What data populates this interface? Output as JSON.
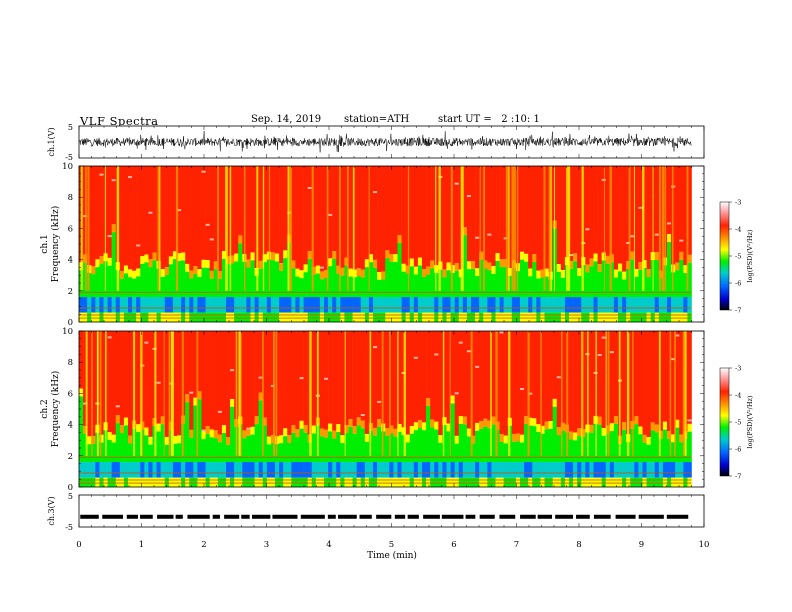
{
  "header": {
    "title": "VLF Spectra",
    "date": "Sep. 14, 2019",
    "station": "station=ATH",
    "start_ut": "start UT =   2 :10: 1"
  },
  "colors": {
    "spectrogram_scale": [
      "#000000",
      "#0000cc",
      "#0066ff",
      "#00cccc",
      "#00ee00",
      "#ffff00",
      "#ff9900",
      "#ff2200",
      "#ffffff"
    ]
  },
  "chart_data": [
    {
      "type": "line",
      "panel": "ch1-waveform",
      "ylabel": "ch.1(V)",
      "yticks": [
        "5",
        "-5"
      ],
      "ylim": [
        -5,
        5
      ],
      "xlim": [
        0,
        10
      ],
      "data_extent_min": 9.8,
      "description_series": "noisy voltage waveform fluctuating roughly between -2 and 2 V"
    },
    {
      "type": "heatmap",
      "panel": "ch1-spectrogram",
      "ylabel_line1": "ch.1",
      "ylabel_line2": "Frequency (kHz)",
      "yticks": [
        "0",
        "2",
        "4",
        "6",
        "8",
        "10"
      ],
      "ylim": [
        0,
        10
      ],
      "xlim": [
        0,
        10
      ],
      "colorbar": {
        "label": "log(PSD)(V²/Hz)",
        "ticks": [
          "-3",
          "-4",
          "-5",
          "-6",
          "-7"
        ],
        "range": [
          -7,
          -3
        ]
      }
    },
    {
      "type": "heatmap",
      "panel": "ch2-spectrogram",
      "ylabel_line1": "ch.2",
      "ylabel_line2": "Frequency (kHz)",
      "yticks": [
        "0",
        "2",
        "4",
        "6",
        "8",
        "10"
      ],
      "ylim": [
        0,
        10
      ],
      "xlim": [
        0,
        10
      ],
      "colorbar": {
        "label": "log(PSD)(V²/Hz)",
        "ticks": [
          "-3",
          "-4",
          "-5",
          "-6",
          "-7"
        ],
        "range": [
          -7,
          -3
        ]
      }
    },
    {
      "type": "line",
      "panel": "ch3-waveform",
      "ylabel": "ch.3(V)",
      "yticks": [
        "5",
        "-5"
      ],
      "ylim": [
        -5,
        5
      ],
      "xlim": [
        0,
        10
      ],
      "level": -1.8
    }
  ],
  "xaxis": {
    "label": "Time (min)",
    "ticks": [
      "0",
      "1",
      "2",
      "3",
      "4",
      "5",
      "6",
      "7",
      "8",
      "9",
      "10"
    ]
  }
}
